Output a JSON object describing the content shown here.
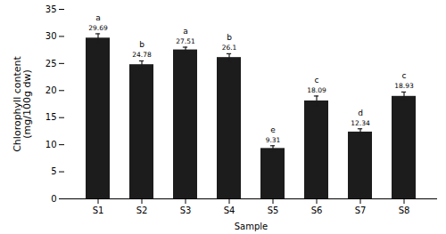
{
  "chart_data": {
    "type": "bar",
    "categories": [
      "S1",
      "S2",
      "S3",
      "S4",
      "S5",
      "S6",
      "S7",
      "S8"
    ],
    "values": [
      29.69,
      24.78,
      27.51,
      26.1,
      9.31,
      18.09,
      12.34,
      18.93
    ],
    "errors": [
      0.8,
      0.7,
      0.5,
      0.7,
      0.5,
      0.9,
      0.6,
      0.8
    ],
    "letters": [
      "a",
      "b",
      "a",
      "b",
      "e",
      "c",
      "d",
      "c"
    ],
    "color": "#1c1c1c",
    "xlabel": "Sample",
    "ylabel": "Chlorophyll content\n(mg/100g dw)",
    "ylim": [
      0,
      35
    ],
    "yticks": [
      0,
      5,
      10,
      15,
      20,
      25,
      30,
      35
    ],
    "data_labels": true,
    "grid": false
  }
}
